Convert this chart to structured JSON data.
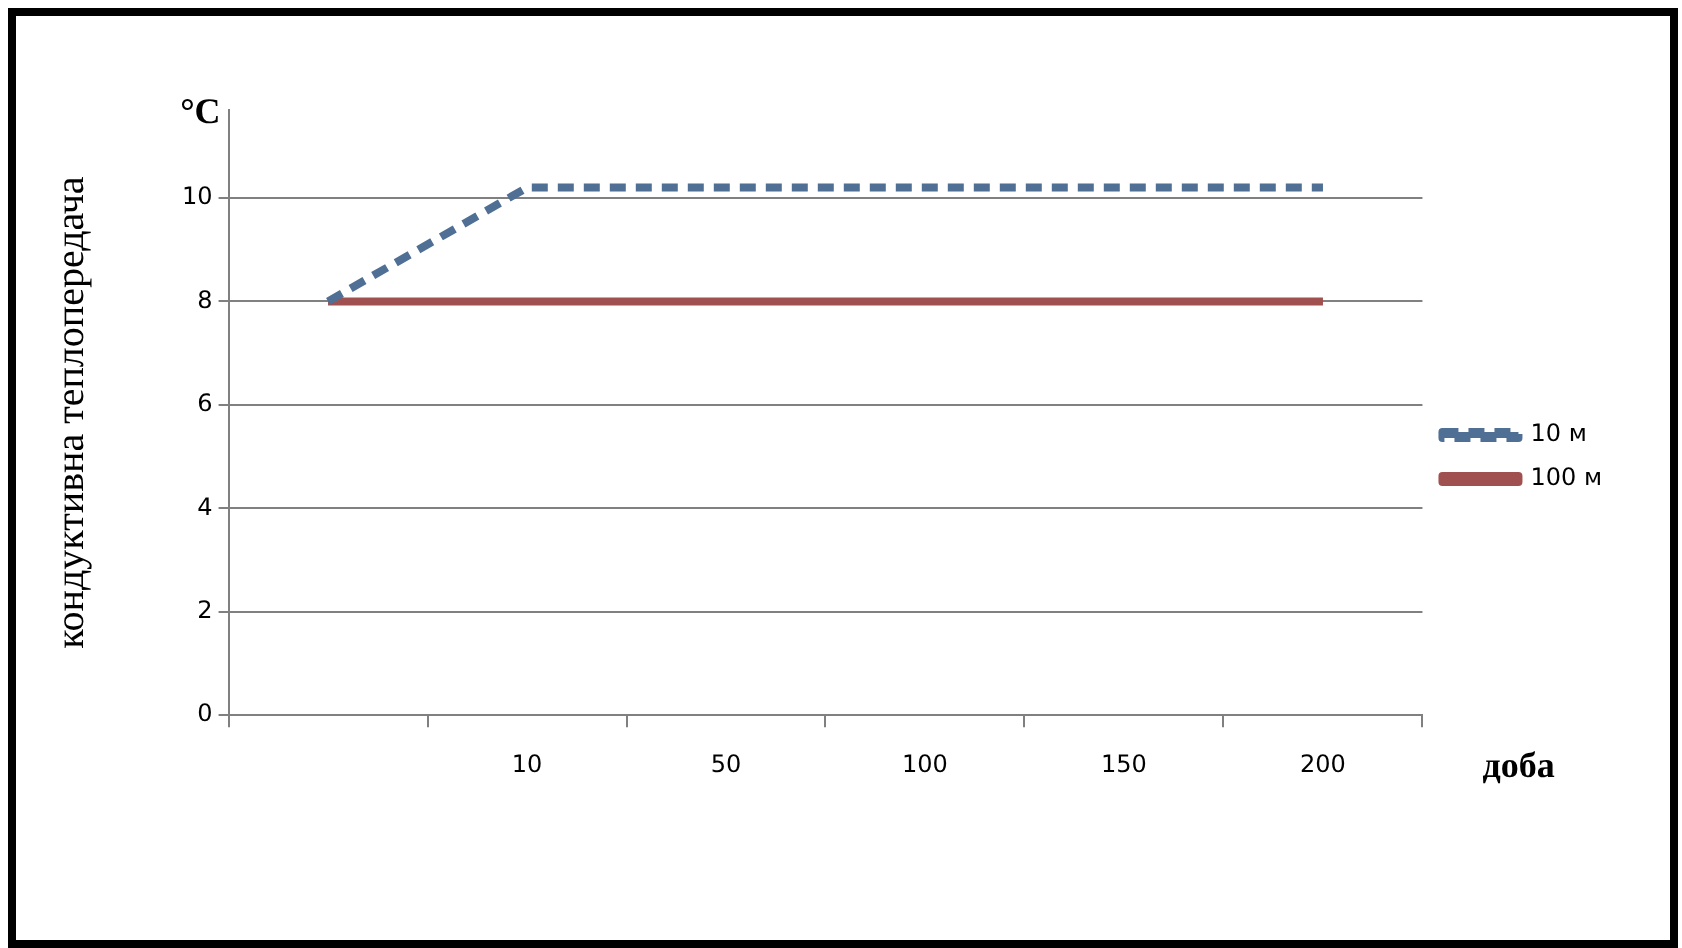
{
  "chart_data": {
    "type": "line",
    "ylabel": "кондуктивна теплопередача",
    "annotations": [
      "°C",
      "доба"
    ],
    "categories": [
      null,
      "10",
      "50",
      "100",
      "150",
      "200"
    ],
    "series": [
      {
        "name": "10 м",
        "color": "#4f6f94",
        "line_style": "dashed",
        "values": [
          8,
          10.2,
          10.2,
          10.2,
          10.2,
          10.2
        ]
      },
      {
        "name": "100 м",
        "color": "#a0504e",
        "line_style": "solid",
        "values": [
          8,
          8,
          8,
          8,
          8,
          8
        ]
      }
    ],
    "ylim": [
      0,
      11.7
    ],
    "yticks": [
      0,
      2,
      4,
      6,
      8,
      10
    ],
    "grid": "y",
    "legend": "right",
    "marker": "none"
  }
}
